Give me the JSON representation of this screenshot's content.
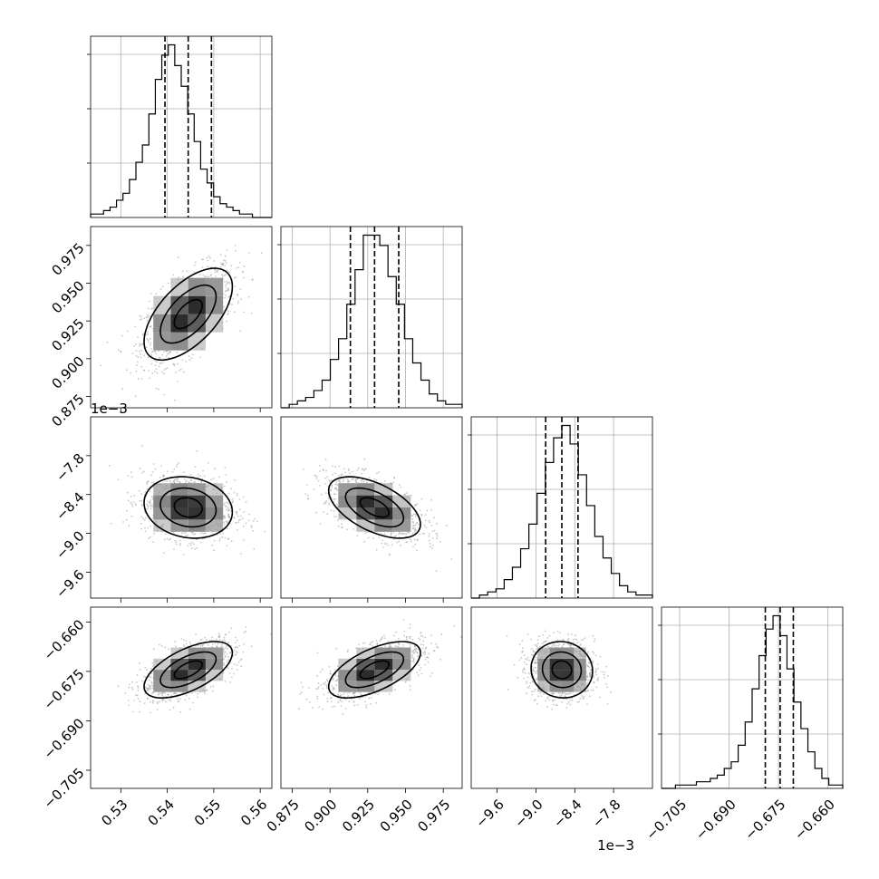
{
  "chart_data": {
    "type": "corner",
    "parameters": [
      {
        "ticks": [
          0.53,
          0.54,
          0.55,
          0.56
        ],
        "tick_labels": [
          "0.53",
          "0.54",
          "0.55",
          "0.56"
        ],
        "range": [
          0.5235,
          0.5625
        ],
        "offset_text": "",
        "mean": 0.5445,
        "std": 0.005,
        "quantiles": [
          0.5395,
          0.5445,
          0.5495
        ],
        "hist_bins": [
          0.5235,
          0.5625,
          28
        ],
        "hist_counts": [
          1,
          1,
          2,
          3,
          5,
          7,
          11,
          16,
          21,
          30,
          40,
          47,
          50,
          44,
          38,
          30,
          22,
          14,
          10,
          6,
          4,
          3,
          2,
          1,
          1,
          0,
          0,
          0
        ]
      },
      {
        "ticks": [
          0.875,
          0.9,
          0.925,
          0.95,
          0.975
        ],
        "tick_labels": [
          "0.875",
          "0.900",
          "0.925",
          "0.950",
          "0.975"
        ],
        "range": [
          0.8675,
          0.9875
        ],
        "offset_text": "",
        "mean": 0.9295,
        "std": 0.016,
        "quantiles": [
          0.9135,
          0.9295,
          0.9455
        ],
        "hist_bins": [
          0.8675,
          0.9875,
          22
        ],
        "hist_counts": [
          0,
          1,
          2,
          3,
          5,
          8,
          14,
          20,
          30,
          40,
          50,
          50,
          47,
          38,
          30,
          20,
          13,
          8,
          4,
          2,
          1,
          1
        ]
      },
      {
        "ticks": [
          -9.6,
          -9.0,
          -8.4,
          -7.8
        ],
        "tick_labels": [
          "−9.6",
          "−9.0",
          "−8.4",
          "−7.8"
        ],
        "range": [
          -10.0,
          -7.2
        ],
        "offset_text": "1e−3",
        "mean": -8.6,
        "std": 0.25,
        "quantiles": [
          -8.85,
          -8.6,
          -8.35
        ],
        "hist_bins": [
          -10.0,
          -7.2,
          22
        ],
        "hist_counts": [
          0,
          1,
          2,
          3,
          6,
          10,
          16,
          24,
          34,
          44,
          52,
          56,
          50,
          40,
          30,
          20,
          13,
          8,
          4,
          2,
          1,
          1
        ]
      },
      {
        "ticks": [
          -0.705,
          -0.69,
          -0.675,
          -0.66
        ],
        "tick_labels": [
          "−0.705",
          "−0.690",
          "−0.675",
          "−0.660"
        ],
        "range": [
          -0.7105,
          -0.6555
        ],
        "offset_text": "",
        "mean": -0.6745,
        "std": 0.0045,
        "quantiles": [
          -0.679,
          -0.6745,
          -0.6705
        ],
        "hist_bins": [
          -0.7105,
          -0.6555,
          26
        ],
        "hist_counts": [
          0,
          0,
          1,
          1,
          1,
          2,
          2,
          3,
          4,
          6,
          8,
          13,
          20,
          30,
          40,
          48,
          52,
          46,
          36,
          26,
          18,
          11,
          6,
          3,
          1,
          1
        ]
      }
    ],
    "correlations": {
      "1-0": 0.6,
      "2-0": -0.15,
      "2-1": -0.55,
      "3-0": 0.6,
      "3-1": 0.6,
      "3-2": -0.05
    },
    "contour_levels_sigma": [
      0.6,
      1.2,
      1.9
    ],
    "title": "",
    "legend": false,
    "grid": true
  }
}
